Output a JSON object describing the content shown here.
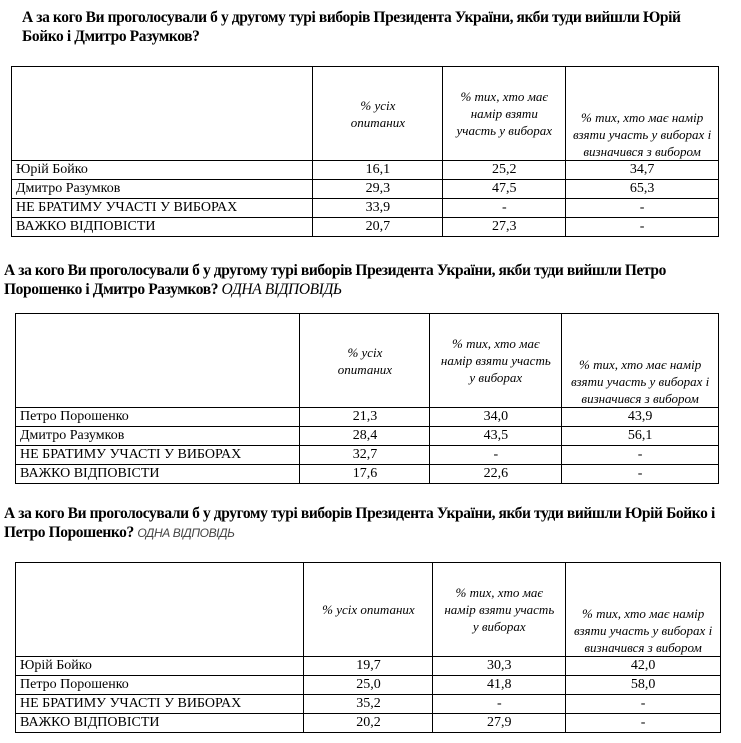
{
  "sections": [
    {
      "title": "А за кого Ви проголосували б у другому турі виборів Президента України, якби туди вийшли Юрій Бойко і Дмитро Разумков?",
      "note": "",
      "headers": [
        "",
        "% усіх опитаних",
        "% тих, хто має намір взяти участь у виборах",
        "% тих, хто має намір взяти участь у виборах і визначився з вибором"
      ],
      "rows": [
        [
          "Юрій Бойко",
          "16,1",
          "25,2",
          "34,7"
        ],
        [
          "Дмитро Разумков",
          "29,3",
          "47,5",
          "65,3"
        ],
        [
          "НЕ БРАТИМУ УЧАСТІ У ВИБОРАХ",
          "33,9",
          "-",
          "-"
        ],
        [
          "ВАЖКО ВІДПОВІСТИ",
          "20,7",
          "27,3",
          "-"
        ]
      ]
    },
    {
      "title": "А за кого Ви проголосували б у другому турі виборів Президента України, якби туди вийшли Петро Порошенко і Дмитро Разумков?",
      "note": "ОДНА ВІДПОВІДЬ",
      "headers": [
        "",
        "% усіх опитаних",
        "% тих, хто має намір взяти участь у виборах",
        "% тих, хто має намір взяти участь у виборах і визначився з вибором"
      ],
      "rows": [
        [
          "Петро Порошенко",
          "21,3",
          "34,0",
          "43,9"
        ],
        [
          "Дмитро Разумков",
          "28,4",
          "43,5",
          "56,1"
        ],
        [
          "НЕ БРАТИМУ УЧАСТІ У ВИБОРАХ",
          "32,7",
          "-",
          "-"
        ],
        [
          "ВАЖКО ВІДПОВІСТИ",
          "17,6",
          "22,6",
          "-"
        ]
      ]
    },
    {
      "title": "А за кого Ви проголосували б у другому турі виборів Президента України, якби туди вийшли Юрій Бойко і Петро Порошенко?",
      "note": "ОДНА ВІДПОВІДЬ",
      "headers": [
        "",
        "% усіх опитаних",
        "% тих, хто має намір взяти участь у виборах",
        "% тих, хто має намір взяти участь у виборах і визначився з вибором"
      ],
      "rows": [
        [
          "Юрій Бойко",
          "19,7",
          "30,3",
          "42,0"
        ],
        [
          "Петро Порошенко",
          "25,0",
          "41,8",
          "58,0"
        ],
        [
          "НЕ БРАТИМУ УЧАСТІ У ВИБОРАХ",
          "35,2",
          "-",
          "-"
        ],
        [
          "ВАЖКО ВІДПОВІСТИ",
          "20,2",
          "27,9",
          "-"
        ]
      ]
    }
  ]
}
